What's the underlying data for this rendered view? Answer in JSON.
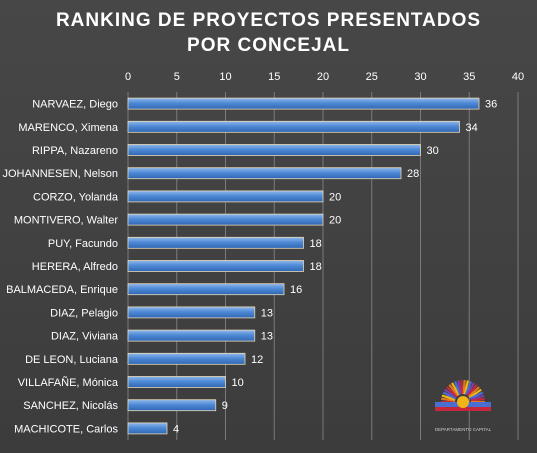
{
  "chart_data": {
    "type": "bar",
    "orientation": "horizontal",
    "title": "RANKING DE PROYECTOS PRESENTADOS",
    "subtitle": "POR CONCEJAL",
    "categories": [
      "NARVAEZ, Diego",
      "MARENCO, Ximena",
      "RIPPA, Nazareno",
      "JOHANNESEN, Nelson",
      "CORZO, Yolanda",
      "MONTIVERO, Walter",
      "PUY, Facundo",
      "HERERA, Alfredo",
      "BALMACEDA, Enrique",
      "DIAZ, Pelagio",
      "DIAZ, Viviana",
      "DE LEON, Luciana",
      "VILLAFAÑE, Mónica",
      "SANCHEZ, Nicolás",
      "MACHICOTE, Carlos"
    ],
    "values": [
      36,
      34,
      30,
      28,
      20,
      20,
      18,
      18,
      16,
      13,
      13,
      12,
      10,
      9,
      4
    ],
    "xlim": [
      0,
      40
    ],
    "xticks": [
      "0",
      "5",
      "10",
      "15",
      "20",
      "25",
      "30",
      "35",
      "40"
    ],
    "x_axis_position": "top",
    "grid": true,
    "data_labels": true,
    "bar_color": "#4a86d4",
    "background_color": "#404040"
  },
  "logo": {
    "caption": "DEPARTAMENTO CAPITAL"
  }
}
